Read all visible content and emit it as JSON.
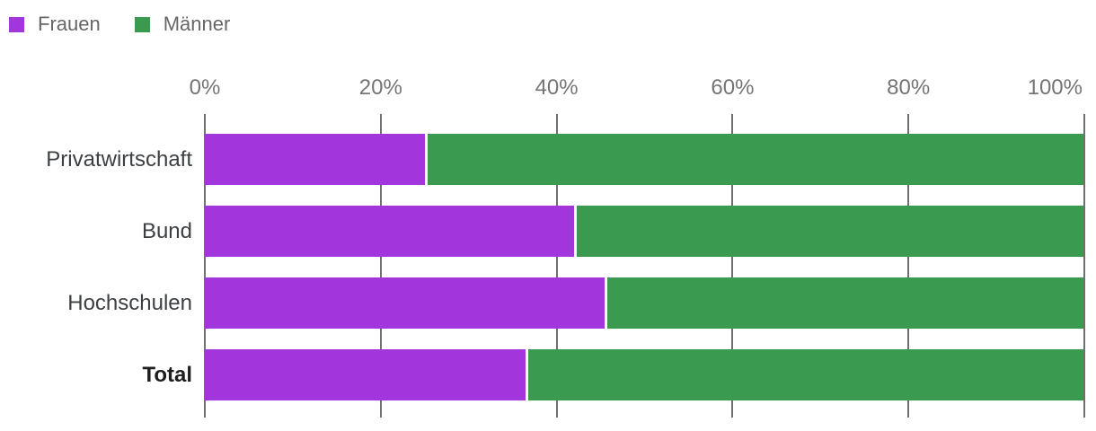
{
  "chart_data": {
    "type": "bar",
    "orientation": "horizontal",
    "stacked": true,
    "x_axis_position": "top",
    "xlim": [
      0,
      100
    ],
    "grid": true,
    "legend_position": "top-left",
    "categories": [
      "Privatwirtschaft",
      "Bund",
      "Hochschulen",
      "Total"
    ],
    "bold_categories": [
      "Total"
    ],
    "series": [
      {
        "name": "Frauen",
        "color": "#a335dc",
        "values": [
          25,
          42,
          45.5,
          36.5
        ]
      },
      {
        "name": "Männer",
        "color": "#3a9b50",
        "values": [
          75,
          58,
          54.5,
          63.5
        ]
      }
    ],
    "x_ticks": [
      {
        "value": 0,
        "label": "0%"
      },
      {
        "value": 20,
        "label": "20%"
      },
      {
        "value": 40,
        "label": "40%"
      },
      {
        "value": 60,
        "label": "60%"
      },
      {
        "value": 80,
        "label": "80%"
      },
      {
        "value": 100,
        "label": "100%"
      }
    ]
  },
  "colors": {
    "background": "#ffffff",
    "gridline": "#6f6f6f",
    "axis_text": "#757575",
    "category_text": "#3c4043",
    "legend_text": "#666666",
    "segment_gap": "#ffffff"
  }
}
